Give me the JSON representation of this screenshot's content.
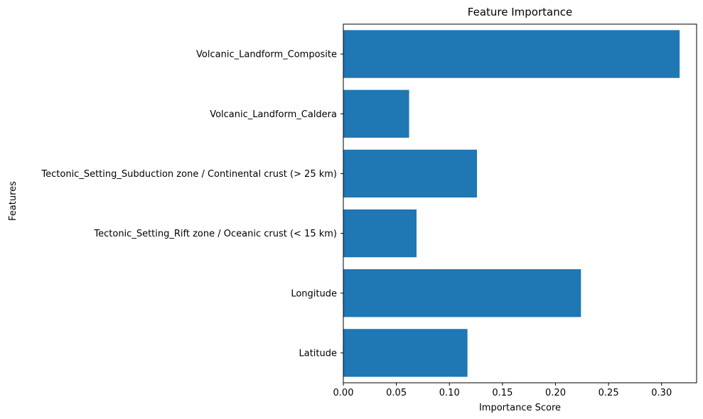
{
  "chart_data": {
    "type": "bar",
    "orientation": "horizontal",
    "title": "Feature Importance",
    "xlabel": "Importance Score",
    "ylabel": "Features",
    "categories": [
      "Latitude",
      "Longitude",
      "Tectonic_Setting_Rift zone / Oceanic crust (< 15 km)",
      "Tectonic_Setting_Subduction zone / Continental crust (> 25 km)",
      "Volcanic_Landform_Caldera",
      "Volcanic_Landform_Composite"
    ],
    "values": [
      0.117,
      0.224,
      0.069,
      0.126,
      0.062,
      0.317
    ],
    "xlim": [
      0,
      0.333
    ],
    "xticks": [
      "0.00",
      "0.05",
      "0.10",
      "0.15",
      "0.20",
      "0.25",
      "0.30"
    ],
    "grid": false,
    "legend": "none",
    "bar_color": "#1f77b4"
  }
}
